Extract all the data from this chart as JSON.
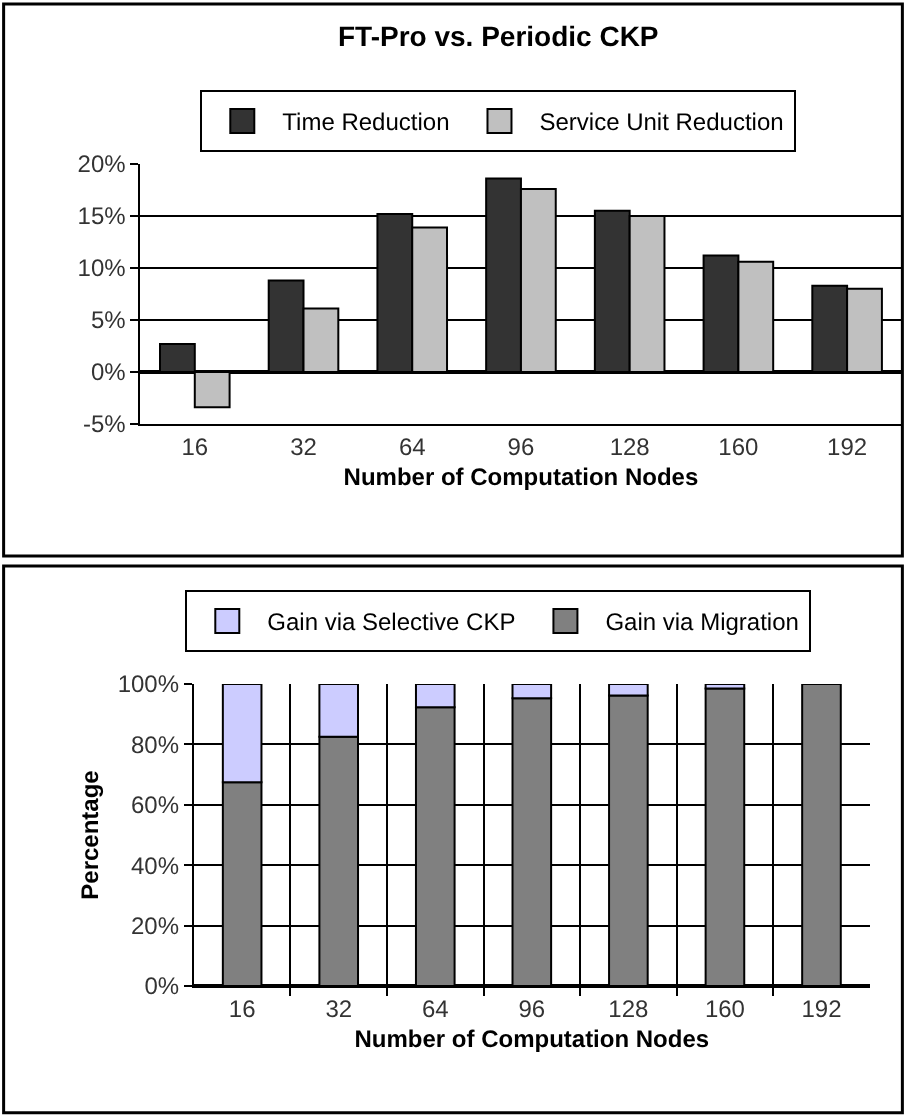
{
  "chart_data": [
    {
      "type": "bar",
      "title": "FT-Pro vs. Periodic CKP",
      "xlabel": "Number of Computation Nodes",
      "categories": [
        "16",
        "32",
        "64",
        "96",
        "128",
        "160",
        "192"
      ],
      "series": [
        {
          "name": "Time Reduction",
          "color": "#333333",
          "values": [
            2.7,
            8.8,
            15.2,
            18.6,
            15.5,
            11.2,
            8.3
          ]
        },
        {
          "name": "Service Unit Reduction",
          "color": "#c0c0c0",
          "values": [
            -3.4,
            6.1,
            13.9,
            17.6,
            15.0,
            10.6,
            8.0
          ]
        }
      ],
      "ylim": [
        -5,
        20
      ],
      "yticks": [
        {
          "value": -5,
          "label": "-5%"
        },
        {
          "value": 0,
          "label": "0%"
        },
        {
          "value": 5,
          "label": "5%"
        },
        {
          "value": 10,
          "label": "10%"
        },
        {
          "value": 15,
          "label": "15%"
        },
        {
          "value": 20,
          "label": "20%"
        }
      ],
      "grid": "y",
      "legend": "top"
    },
    {
      "type": "bar",
      "stacked": true,
      "xlabel": "Number of Computation Nodes",
      "ylabel": "Percentage",
      "categories": [
        "16",
        "32",
        "64",
        "96",
        "128",
        "160",
        "192"
      ],
      "series": [
        {
          "name": "Gain via Migration",
          "color": "#808080",
          "values": [
            67.5,
            82.5,
            92.3,
            95.3,
            96.2,
            98.5,
            100
          ]
        },
        {
          "name": "Gain via Selective CKP",
          "color": "#ccccff",
          "values": [
            32.5,
            17.5,
            7.7,
            4.7,
            3.8,
            1.5,
            0
          ]
        }
      ],
      "ylim": [
        0,
        100
      ],
      "yticks": [
        {
          "value": 0,
          "label": "0%"
        },
        {
          "value": 20,
          "label": "20%"
        },
        {
          "value": 40,
          "label": "40%"
        },
        {
          "value": 60,
          "label": "60%"
        },
        {
          "value": 80,
          "label": "80%"
        },
        {
          "value": 100,
          "label": "100%"
        }
      ],
      "grid": true,
      "legend": "top"
    }
  ]
}
